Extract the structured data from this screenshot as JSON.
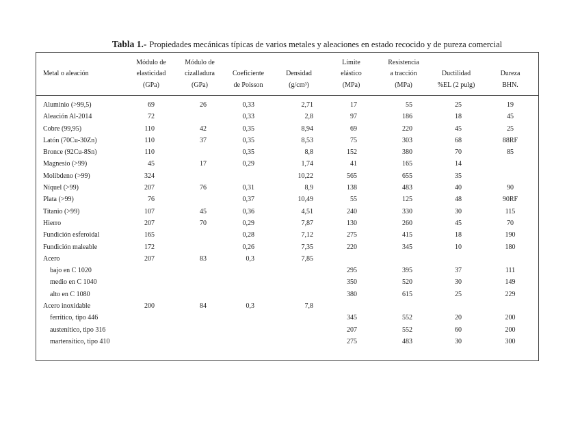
{
  "title": {
    "prefix": "Tabla 1.-",
    "text": "Propiedades mecánicas típicas de varios metales y aleaciones en estado recocido y de pureza comercial"
  },
  "colors": {
    "border": "#3f3f3f",
    "text": "#1b1b1b",
    "background": "#ffffff"
  },
  "table": {
    "header": {
      "rows": [
        [
          "",
          "Módulo de",
          "Módulo de",
          "",
          "",
          "Límite",
          "Resistencia",
          "",
          ""
        ],
        [
          "Metal o aleación",
          "elasticidad",
          "cizalladura",
          "Coeficiente",
          "Densidad",
          "elástico",
          "a tracción",
          "Ductilidad",
          "Dureza"
        ],
        [
          "",
          "(GPa)",
          "(GPa)",
          "de Poisson",
          "(g/cm³)",
          "(MPa)",
          "(MPa)",
          "%EL (2 pulg)",
          "BHN."
        ]
      ]
    },
    "rows": [
      {
        "name": "Aluminio (>99,5)",
        "indent": false,
        "values": [
          "69",
          "26",
          "0,33",
          "2,71",
          "17",
          "55",
          "25",
          "19"
        ]
      },
      {
        "name": "Aleación Al-2014",
        "indent": false,
        "values": [
          "72",
          "",
          "0,33",
          "2,8",
          "97",
          "186",
          "18",
          "45"
        ]
      },
      {
        "name": "Cobre (99,95)",
        "indent": false,
        "values": [
          "110",
          "42",
          "0,35",
          "8,94",
          "69",
          "220",
          "45",
          "25"
        ]
      },
      {
        "name": "Latón (70Cu-30Zn)",
        "indent": false,
        "values": [
          "110",
          "37",
          "0,35",
          "8,53",
          "75",
          "303",
          "68",
          "88RF"
        ]
      },
      {
        "name": "Bronce (92Cu-8Sn)",
        "indent": false,
        "values": [
          "110",
          "",
          "0,35",
          "8,8",
          "152",
          "380",
          "70",
          "85"
        ]
      },
      {
        "name": "Magnesio (>99)",
        "indent": false,
        "values": [
          "45",
          "17",
          "0,29",
          "1,74",
          "41",
          "165",
          "14",
          ""
        ]
      },
      {
        "name": "Molibdeno (>99)",
        "indent": false,
        "values": [
          "324",
          "",
          "",
          "10,22",
          "565",
          "655",
          "35",
          ""
        ]
      },
      {
        "name": "Níquel (>99)",
        "indent": false,
        "values": [
          "207",
          "76",
          "0,31",
          "8,9",
          "138",
          "483",
          "40",
          "90"
        ]
      },
      {
        "name": "Plata (>99)",
        "indent": false,
        "values": [
          "76",
          "",
          "0,37",
          "10,49",
          "55",
          "125",
          "48",
          "90RF"
        ]
      },
      {
        "name": "Titanio (>99)",
        "indent": false,
        "values": [
          "107",
          "45",
          "0,36",
          "4,51",
          "240",
          "330",
          "30",
          "115"
        ]
      },
      {
        "name": "Hierro",
        "indent": false,
        "values": [
          "207",
          "70",
          "0,29",
          "7,87",
          "130",
          "260",
          "45",
          "70"
        ]
      },
      {
        "name": "Fundición esferoidal",
        "indent": false,
        "values": [
          "165",
          "",
          "0,28",
          "7,12",
          "275",
          "415",
          "18",
          "190"
        ]
      },
      {
        "name": "Fundición maleable",
        "indent": false,
        "values": [
          "172",
          "",
          "0,26",
          "7,35",
          "220",
          "345",
          "10",
          "180"
        ]
      },
      {
        "name": "Acero",
        "indent": false,
        "values": [
          "207",
          "83",
          "0,3",
          "7,85",
          "",
          "",
          "",
          ""
        ]
      },
      {
        "name": "bajo en C 1020",
        "indent": true,
        "values": [
          "",
          "",
          "",
          "",
          "295",
          "395",
          "37",
          "111"
        ]
      },
      {
        "name": "medio en C 1040",
        "indent": true,
        "values": [
          "",
          "",
          "",
          "",
          "350",
          "520",
          "30",
          "149"
        ]
      },
      {
        "name": "alto en C 1080",
        "indent": true,
        "values": [
          "",
          "",
          "",
          "",
          "380",
          "615",
          "25",
          "229"
        ]
      },
      {
        "name": "Acero inoxidable",
        "indent": false,
        "values": [
          "200",
          "84",
          "0,3",
          "7,8",
          "",
          "",
          "",
          ""
        ]
      },
      {
        "name": "ferrítico, tipo 446",
        "indent": true,
        "values": [
          "",
          "",
          "",
          "",
          "345",
          "552",
          "20",
          "200"
        ]
      },
      {
        "name": "austenítico, tipo 316",
        "indent": true,
        "values": [
          "",
          "",
          "",
          "",
          "207",
          "552",
          "60",
          "200"
        ]
      },
      {
        "name": "martensítico, tipo 410",
        "indent": true,
        "values": [
          "",
          "",
          "",
          "",
          "275",
          "483",
          "30",
          "300"
        ]
      }
    ]
  }
}
